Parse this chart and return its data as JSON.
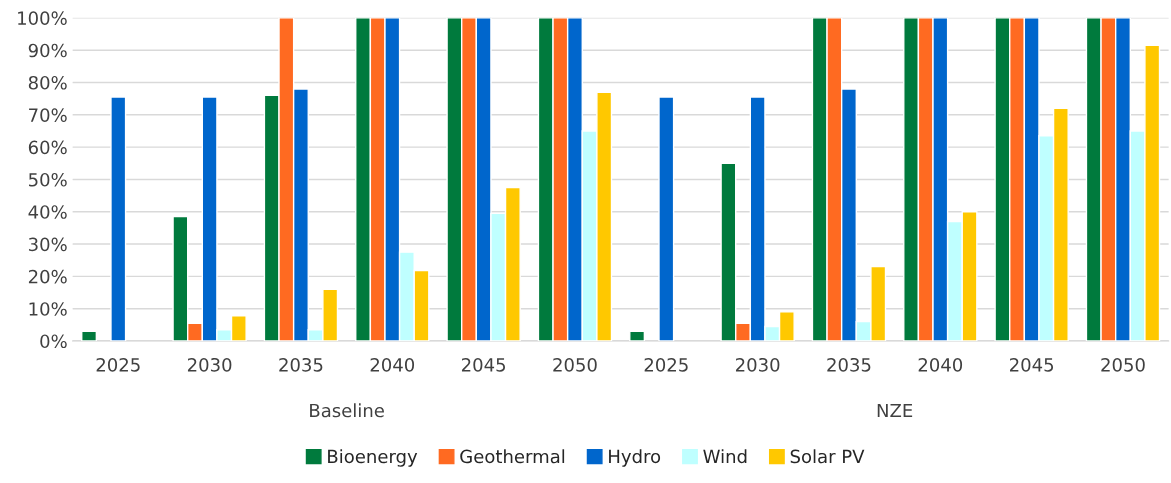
{
  "chart_data": {
    "type": "bar",
    "categories": [
      "2025",
      "2030",
      "2035",
      "2040",
      "2045",
      "2050",
      "2025",
      "2030",
      "2035",
      "2040",
      "2045",
      "2050"
    ],
    "series": [
      {
        "name": "Bioenergy",
        "color": "#007a3d",
        "values": [
          3,
          38.5,
          76,
          100,
          100,
          100,
          3,
          55,
          100,
          100,
          100,
          100
        ]
      },
      {
        "name": "Geothermal",
        "color": "#ff6a21",
        "values": [
          null,
          5.5,
          100,
          100,
          100,
          100,
          null,
          5.5,
          100,
          100,
          100,
          100
        ]
      },
      {
        "name": "Hydro",
        "color": "#0066cc",
        "values": [
          75.5,
          75.5,
          78,
          100,
          100,
          100,
          75.5,
          75.5,
          78,
          100,
          100,
          100
        ]
      },
      {
        "name": "Wind",
        "color": "#bfffff",
        "values": [
          null,
          3.5,
          3.5,
          27.5,
          39.5,
          65,
          null,
          4.5,
          6,
          37,
          63.5,
          65
        ]
      },
      {
        "name": "Solar PV",
        "color": "#ffc800",
        "values": [
          null,
          7.8,
          16,
          21.8,
          47.5,
          77,
          null,
          9,
          23,
          40,
          72,
          91.5
        ]
      }
    ],
    "ylim": [
      0,
      100
    ],
    "yticks": [
      {
        "value": 0,
        "label": "0%"
      },
      {
        "value": 10,
        "label": "10%"
      },
      {
        "value": 20,
        "label": "20%"
      },
      {
        "value": 30,
        "label": "30%"
      },
      {
        "value": 40,
        "label": "40%"
      },
      {
        "value": 50,
        "label": "50%"
      },
      {
        "value": 60,
        "label": "60%"
      },
      {
        "value": 70,
        "label": "70%"
      },
      {
        "value": 80,
        "label": "80%"
      },
      {
        "value": 90,
        "label": "90%"
      },
      {
        "value": 100,
        "label": "100%"
      }
    ],
    "annotations": [
      "Baseline",
      "NZE"
    ],
    "grid": "y",
    "legend": "bottom"
  }
}
